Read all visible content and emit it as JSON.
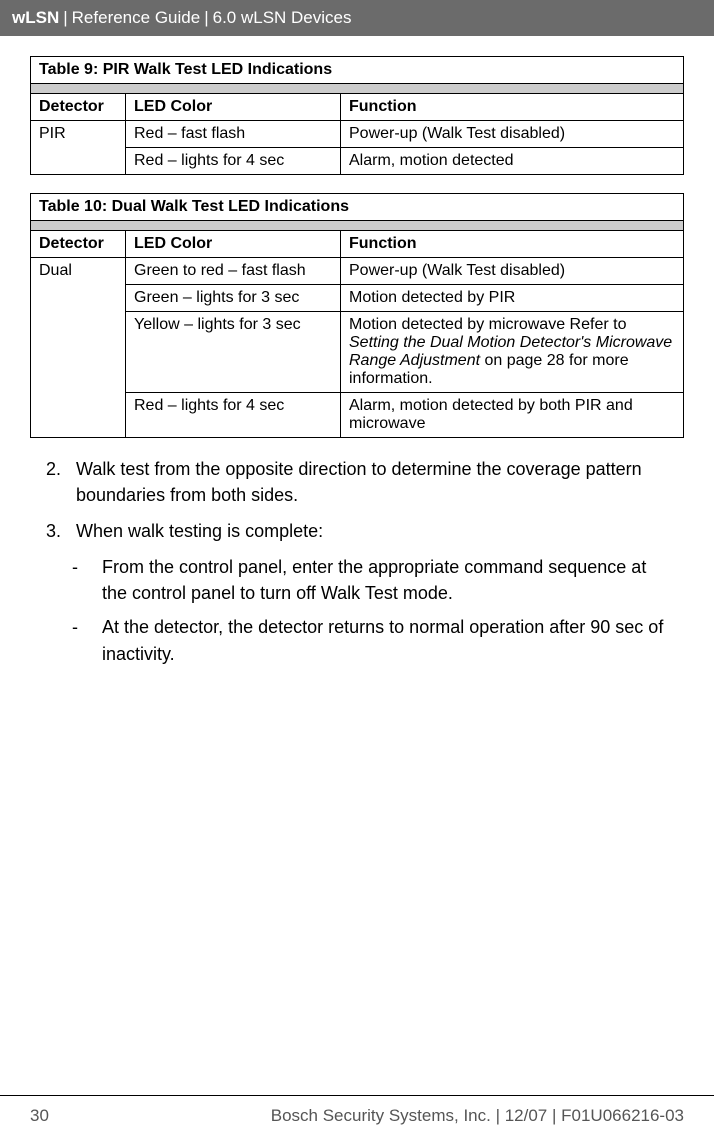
{
  "header": {
    "bold": "wLSN",
    "sep1": " | ",
    "light": "Reference Guide",
    "sep2": " | ",
    "section": "6.0 wLSN Devices"
  },
  "table9": {
    "title": "Table 9:    PIR Walk Test LED Indications",
    "cols": {
      "detector": "Detector",
      "led": "LED Color",
      "func": "Function"
    },
    "detector": "PIR",
    "rows": [
      {
        "led": "Red – fast flash",
        "func": "Power-up (Walk Test disabled)"
      },
      {
        "led": "Red – lights for 4 sec",
        "func": "Alarm, motion detected"
      }
    ]
  },
  "table10": {
    "title": "Table 10:  Dual Walk Test LED Indications",
    "cols": {
      "detector": "Detector",
      "led": "LED Color",
      "func": "Function"
    },
    "detector": "Dual",
    "rows": [
      {
        "led": "Green to red – fast flash",
        "func": "Power-up (Walk Test disabled)"
      },
      {
        "led": "Green – lights for 3 sec",
        "func": "Motion detected by PIR"
      },
      {
        "led": "Yellow – lights for 3 sec",
        "func_pre": "Motion detected by microwave Refer to ",
        "func_italic": "Setting the Dual Motion Detector's Microwave Range Adjustment",
        "func_post": " on page 28 for more information."
      },
      {
        "led": "Red – lights for 4 sec",
        "func": "Alarm, motion detected by both PIR and microwave"
      }
    ]
  },
  "instructions": {
    "item2_num": "2.",
    "item2": "Walk test from the opposite direction to determine the coverage pattern boundaries from both sides.",
    "item3_num": "3.",
    "item3": "When walk testing is complete:",
    "dash": "-",
    "dash1": "From the control panel, enter the appropriate command sequence at the control panel to turn off Walk Test mode.",
    "dash2": "At the detector, the detector returns to normal operation after 90 sec of inactivity."
  },
  "footer": {
    "page": "30",
    "text": "Bosch Security Systems, Inc. | 12/07 | F01U066216-03"
  }
}
